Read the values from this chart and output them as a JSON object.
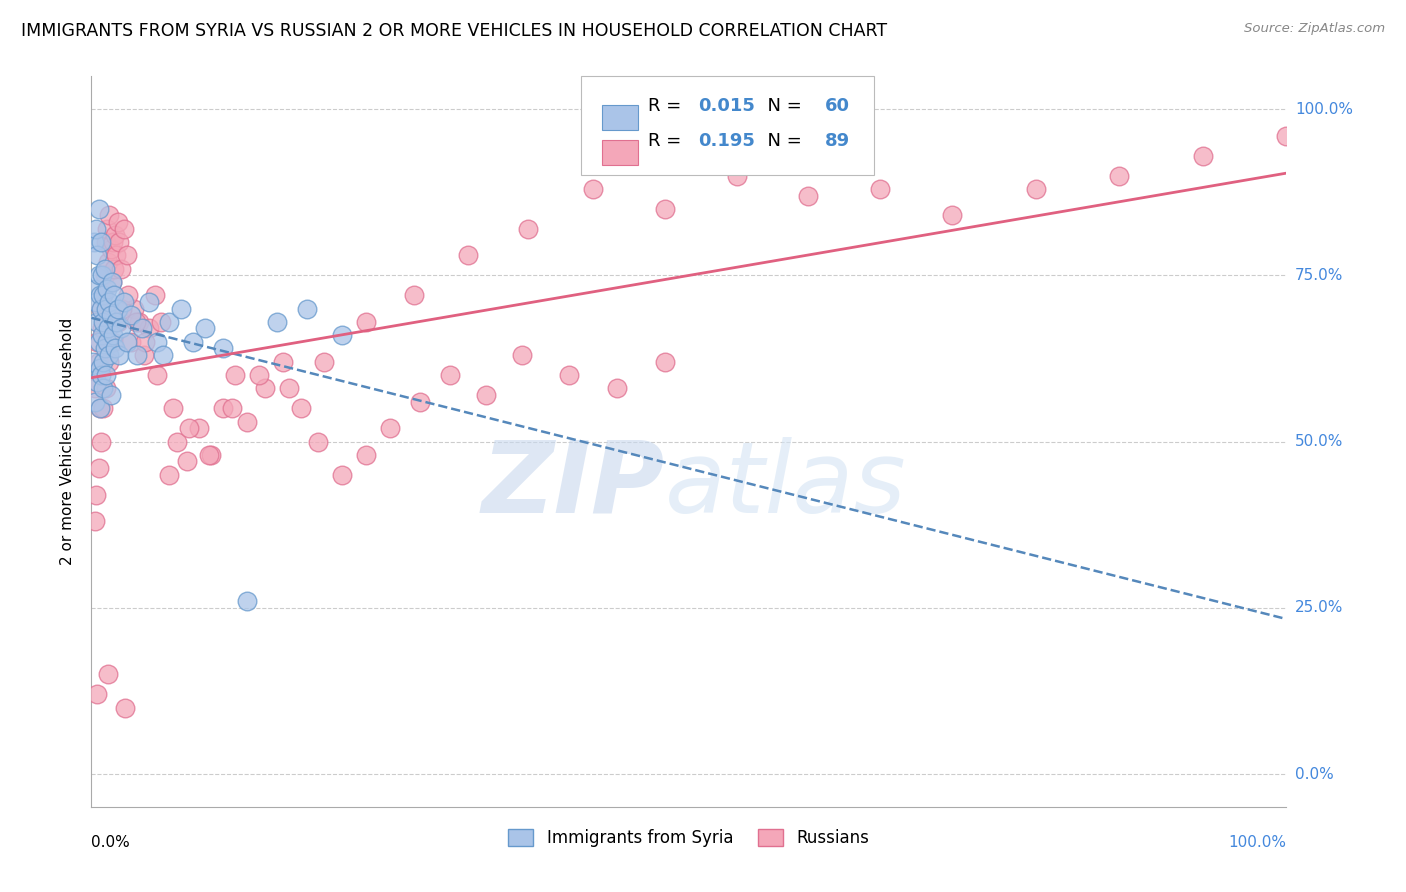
{
  "title": "IMMIGRANTS FROM SYRIA VS RUSSIAN 2 OR MORE VEHICLES IN HOUSEHOLD CORRELATION CHART",
  "source": "Source: ZipAtlas.com",
  "ylabel": "2 or more Vehicles in Household",
  "ytick_labels": [
    "0.0%",
    "25.0%",
    "50.0%",
    "75.0%",
    "100.0%"
  ],
  "ytick_values": [
    0.0,
    0.25,
    0.5,
    0.75,
    1.0
  ],
  "legend_label1": "Immigrants from Syria",
  "legend_label2": "Russians",
  "R1": "0.015",
  "N1": "60",
  "R2": "0.195",
  "N2": "89",
  "color_syria": "#aac4e8",
  "color_russia": "#f4a7b9",
  "edge_color_syria": "#6699cc",
  "edge_color_russia": "#e07090",
  "trendline_color_syria": "#5588bb",
  "trendline_color_russia": "#e06080",
  "syria_x": [
    0.001,
    0.002,
    0.003,
    0.003,
    0.004,
    0.004,
    0.005,
    0.005,
    0.005,
    0.006,
    0.006,
    0.006,
    0.007,
    0.007,
    0.007,
    0.008,
    0.008,
    0.008,
    0.009,
    0.009,
    0.01,
    0.01,
    0.01,
    0.01,
    0.011,
    0.011,
    0.012,
    0.012,
    0.013,
    0.013,
    0.014,
    0.015,
    0.015,
    0.016,
    0.016,
    0.017,
    0.018,
    0.019,
    0.02,
    0.021,
    0.022,
    0.023,
    0.025,
    0.027,
    0.03,
    0.033,
    0.038,
    0.042,
    0.048,
    0.055,
    0.06,
    0.065,
    0.075,
    0.085,
    0.095,
    0.11,
    0.13,
    0.155,
    0.18,
    0.21
  ],
  "syria_y": [
    0.62,
    0.8,
    0.73,
    0.56,
    0.82,
    0.71,
    0.78,
    0.68,
    0.59,
    0.75,
    0.65,
    0.85,
    0.72,
    0.61,
    0.55,
    0.7,
    0.6,
    0.8,
    0.66,
    0.75,
    0.62,
    0.72,
    0.58,
    0.68,
    0.76,
    0.64,
    0.7,
    0.6,
    0.73,
    0.65,
    0.67,
    0.63,
    0.71,
    0.69,
    0.57,
    0.74,
    0.66,
    0.72,
    0.64,
    0.68,
    0.7,
    0.63,
    0.67,
    0.71,
    0.65,
    0.69,
    0.63,
    0.67,
    0.71,
    0.65,
    0.63,
    0.68,
    0.7,
    0.65,
    0.67,
    0.64,
    0.26,
    0.68,
    0.7,
    0.66
  ],
  "russia_x": [
    0.003,
    0.005,
    0.006,
    0.007,
    0.008,
    0.009,
    0.01,
    0.011,
    0.012,
    0.013,
    0.014,
    0.015,
    0.016,
    0.017,
    0.018,
    0.019,
    0.02,
    0.021,
    0.022,
    0.023,
    0.025,
    0.027,
    0.03,
    0.033,
    0.036,
    0.04,
    0.044,
    0.048,
    0.053,
    0.058,
    0.065,
    0.072,
    0.08,
    0.09,
    0.1,
    0.11,
    0.12,
    0.13,
    0.145,
    0.16,
    0.175,
    0.19,
    0.21,
    0.23,
    0.25,
    0.275,
    0.3,
    0.33,
    0.36,
    0.4,
    0.44,
    0.48,
    0.003,
    0.004,
    0.006,
    0.008,
    0.01,
    0.012,
    0.015,
    0.018,
    0.022,
    0.026,
    0.031,
    0.037,
    0.045,
    0.055,
    0.068,
    0.082,
    0.098,
    0.118,
    0.14,
    0.165,
    0.195,
    0.23,
    0.27,
    0.315,
    0.365,
    0.42,
    0.48,
    0.54,
    0.6,
    0.66,
    0.72,
    0.79,
    0.86,
    0.93,
    1.0,
    0.005,
    0.014,
    0.028
  ],
  "russia_y": [
    0.58,
    0.65,
    0.62,
    0.55,
    0.7,
    0.67,
    0.72,
    0.75,
    0.8,
    0.82,
    0.77,
    0.84,
    0.79,
    0.74,
    0.8,
    0.76,
    0.81,
    0.78,
    0.83,
    0.8,
    0.76,
    0.82,
    0.78,
    0.65,
    0.7,
    0.68,
    0.63,
    0.67,
    0.72,
    0.68,
    0.45,
    0.5,
    0.47,
    0.52,
    0.48,
    0.55,
    0.6,
    0.53,
    0.58,
    0.62,
    0.55,
    0.5,
    0.45,
    0.48,
    0.52,
    0.56,
    0.6,
    0.57,
    0.63,
    0.6,
    0.58,
    0.62,
    0.38,
    0.42,
    0.46,
    0.5,
    0.55,
    0.58,
    0.62,
    0.65,
    0.68,
    0.7,
    0.72,
    0.68,
    0.65,
    0.6,
    0.55,
    0.52,
    0.48,
    0.55,
    0.6,
    0.58,
    0.62,
    0.68,
    0.72,
    0.78,
    0.82,
    0.88,
    0.85,
    0.9,
    0.87,
    0.88,
    0.84,
    0.88,
    0.9,
    0.93,
    0.96,
    0.12,
    0.15,
    0.1
  ],
  "xlim": [
    0,
    1.0
  ],
  "ylim": [
    -0.05,
    1.05
  ],
  "watermark_zip_color": "#c8d8ee",
  "watermark_atlas_color": "#d4e4f4"
}
